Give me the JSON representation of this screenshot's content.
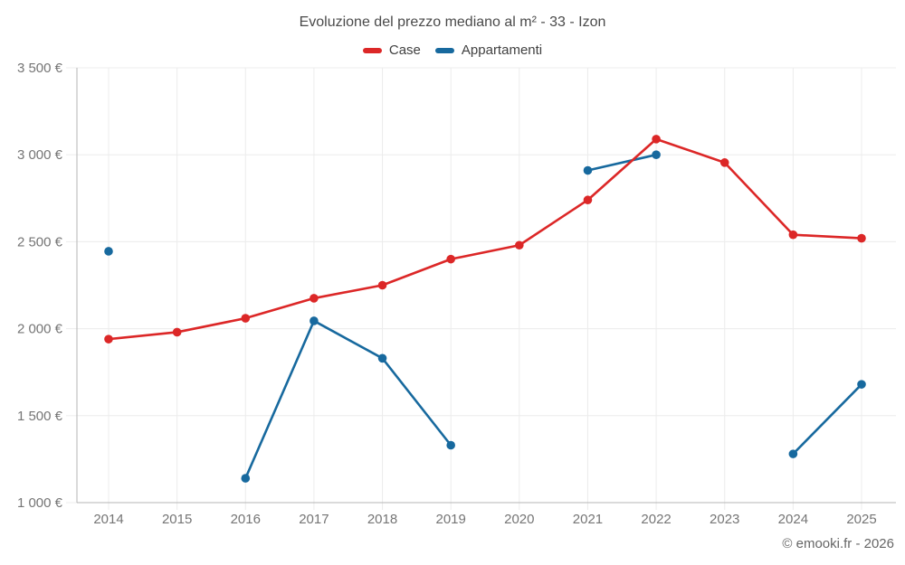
{
  "chart_data": {
    "type": "line",
    "title": "Evoluzione del prezzo mediano al m² - 33 - Izon",
    "x": [
      "2014",
      "2015",
      "2016",
      "2017",
      "2018",
      "2019",
      "2020",
      "2021",
      "2022",
      "2023",
      "2024",
      "2025"
    ],
    "series": [
      {
        "name": "Case",
        "color": "#dc2727",
        "values": [
          1940,
          1980,
          2060,
          2175,
          2250,
          2400,
          2480,
          2740,
          3090,
          2955,
          2540,
          2520
        ]
      },
      {
        "name": "Appartamenti",
        "color": "#17699e",
        "values": [
          2445,
          null,
          1140,
          2045,
          1830,
          1330,
          null,
          2910,
          3000,
          null,
          1280,
          1680
        ]
      }
    ],
    "xlabel": "",
    "ylabel": "",
    "ylim": [
      1000,
      3500
    ],
    "yticks": [
      {
        "value": 1000,
        "label": "1 000 €"
      },
      {
        "value": 1500,
        "label": "1 500 €"
      },
      {
        "value": 2000,
        "label": "2 000 €"
      },
      {
        "value": 2500,
        "label": "2 500 €"
      },
      {
        "value": 3000,
        "label": "3 000 €"
      },
      {
        "value": 3500,
        "label": "3 500 €"
      }
    ],
    "grid": true,
    "legend_position": "top",
    "attribution": "© emooki.fr - 2026",
    "colors": {
      "grid": "#ececec",
      "axis": "#b5b5b5",
      "tick_label": "#757575"
    }
  }
}
